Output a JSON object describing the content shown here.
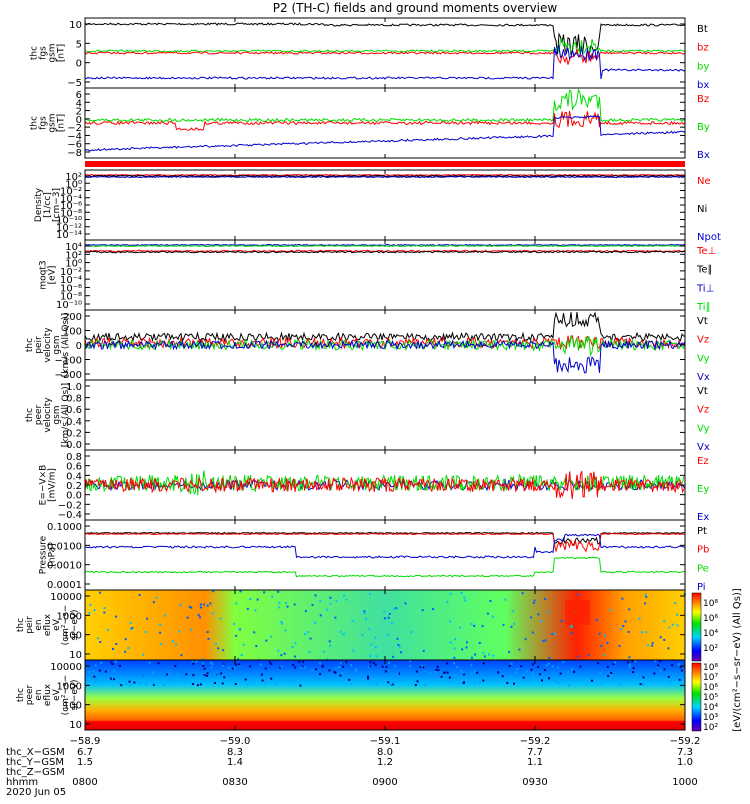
{
  "title": "P2 (TH-C) fields and ground moments overview",
  "colors": {
    "black": "#000000",
    "red": "#ff0000",
    "green": "#00dd00",
    "blue": "#0000cc",
    "frame": "#000000"
  },
  "panels": [
    {
      "id": "fgs",
      "ylabel": [
        "thc",
        "fgs",
        "gsm",
        "[nT]"
      ],
      "yticks": [
        "10",
        "5",
        "0",
        "−5"
      ],
      "legend": [
        {
          "t": "Bt",
          "c": "black"
        },
        {
          "t": "bz",
          "c": "red"
        },
        {
          "t": "by",
          "c": "green"
        },
        {
          "t": "bx",
          "c": "blue"
        }
      ]
    },
    {
      "id": "fgm",
      "ylabel": [
        "thc",
        "fgs",
        "gsm",
        "[nT]"
      ],
      "yticks": [
        "6",
        "4",
        "2",
        "0",
        "−2",
        "−4",
        "−6",
        "−8"
      ],
      "legend": [
        {
          "t": "Bz",
          "c": "red"
        },
        {
          "t": "By",
          "c": "green"
        },
        {
          "t": "Bx",
          "c": "blue"
        }
      ]
    },
    {
      "id": "density",
      "ylabel": [
        "Density",
        "[1/cc]",
        "[cm−3]"
      ],
      "yticks": [
        "10²",
        "10⁰",
        "10⁻²",
        "10⁻⁴",
        "10⁻⁶",
        "10⁻⁸",
        "10⁻¹⁰",
        "10⁻¹²",
        "10⁻¹⁴"
      ],
      "legend": [
        {
          "t": "Ne",
          "c": "red"
        },
        {
          "t": "Ni",
          "c": "black"
        },
        {
          "t": "Npot",
          "c": "blue"
        }
      ]
    },
    {
      "id": "temp",
      "ylabel": [
        "moqt3",
        "[eV]"
      ],
      "yticks": [
        "10⁴",
        "10²",
        "10⁰",
        "10⁻²",
        "10⁻⁴",
        "10⁻⁶",
        "10⁻⁸",
        "10⁻¹⁰"
      ],
      "legend": [
        {
          "t": "Te⊥",
          "c": "red"
        },
        {
          "t": "Te∥",
          "c": "black"
        },
        {
          "t": "Ti⊥",
          "c": "blue"
        },
        {
          "t": "Ti∥",
          "c": "green"
        }
      ]
    },
    {
      "id": "peir",
      "ylabel": [
        "thc",
        "peir",
        "velocity",
        "gsm",
        "[km/s (All Qs)]"
      ],
      "yticks": [
        "200",
        "100",
        "0",
        "−100",
        "−200"
      ],
      "legend": [
        {
          "t": "Vt",
          "c": "black"
        },
        {
          "t": "Vz",
          "c": "red"
        },
        {
          "t": "Vy",
          "c": "green"
        },
        {
          "t": "Vx",
          "c": "blue"
        }
      ]
    },
    {
      "id": "peer",
      "ylabel": [
        "thc",
        "peer",
        "velocity",
        "gsm",
        "[km/s (All Qs)]"
      ],
      "yticks": [
        "1.0",
        "0.8",
        "0.6",
        "0.4",
        "0.2",
        "0.0"
      ],
      "legend": [
        {
          "t": "Vt",
          "c": "black"
        },
        {
          "t": "Vz",
          "c": "red"
        },
        {
          "t": "Vy",
          "c": "green"
        },
        {
          "t": "Vx",
          "c": "blue"
        }
      ]
    },
    {
      "id": "efield",
      "ylabel": [
        "E=−V×B",
        "[mV/m]"
      ],
      "yticks": [
        "0.8",
        "0.6",
        "0.4",
        "0.2",
        "0.0",
        "−0.2",
        "−0.4"
      ],
      "legend": [
        {
          "t": "Ez",
          "c": "red"
        },
        {
          "t": "Ey",
          "c": "green"
        },
        {
          "t": "Ex",
          "c": "blue"
        }
      ]
    },
    {
      "id": "pressure",
      "ylabel": [
        "Pressure",
        "[nPa]"
      ],
      "yticks": [
        "0.1000",
        "0.0100",
        "0.0010",
        "0.0001"
      ],
      "legend": [
        {
          "t": "Pt",
          "c": "black"
        },
        {
          "t": "Pb",
          "c": "red"
        },
        {
          "t": "Pe",
          "c": "green"
        },
        {
          "t": "Pi",
          "c": "blue"
        }
      ]
    },
    {
      "id": "peir_spec",
      "ylabel": [
        "thc",
        "peir",
        "en",
        "eflux",
        "eV",
        "(cm²−s−",
        "sr−eV)"
      ],
      "yticks": [
        "10000",
        "1000",
        "100",
        "10"
      ]
    },
    {
      "id": "peer_spec",
      "ylabel": [
        "thc",
        "peer",
        "en",
        "eflux",
        "eV",
        "(cm²−s−",
        "sr−eV)"
      ],
      "yticks": [
        "10000",
        "1000",
        "100",
        "10"
      ]
    }
  ],
  "colorbar": {
    "label": "[eV/(cm²−s−sr−eV) (All Qs)]",
    "ticks1": [
      "10⁸",
      "10⁶",
      "10⁴",
      "10²"
    ],
    "ticks2": [
      "10⁸",
      "10⁷",
      "10⁶",
      "10⁵",
      "10⁴",
      "10³",
      "10²"
    ]
  },
  "xaxis": {
    "ticks": [
      "−58.9",
      "−59.0",
      "−59.1",
      "−59.2",
      "−59.2"
    ],
    "rows": [
      {
        "label": "thc_X−GSM",
        "vals": [
          "6.7",
          "8.3",
          "8.0",
          "7.7",
          "7.3"
        ]
      },
      {
        "label": "thc_Y−GSM",
        "vals": [
          "1.5",
          "1.4",
          "1.2",
          "1.1",
          "1.0"
        ]
      },
      {
        "label": "thc_Z−GSM",
        "vals": [
          "",
          "",
          "",
          "",
          ""
        ]
      },
      {
        "label": "hhmm",
        "vals": [
          "0800",
          "0830",
          "0900",
          "0930",
          "1000"
        ]
      }
    ],
    "date": "2020 Jun 05"
  },
  "chart_data": {
    "type": "line",
    "title": "P2 (TH-C) fields and ground moments overview",
    "x": [
      "0800",
      "0830",
      "0900",
      "0930",
      "1000"
    ],
    "series": [
      {
        "name": "Bt",
        "values": [
          9,
          9,
          8.5,
          9,
          8
        ]
      },
      {
        "name": "bz",
        "values": [
          0,
          0.5,
          0,
          1,
          0
        ]
      },
      {
        "name": "by",
        "values": [
          0.5,
          0,
          0,
          2,
          1
        ]
      },
      {
        "name": "bx",
        "values": [
          -8,
          -8,
          -8,
          -6,
          -8
        ]
      }
    ]
  }
}
